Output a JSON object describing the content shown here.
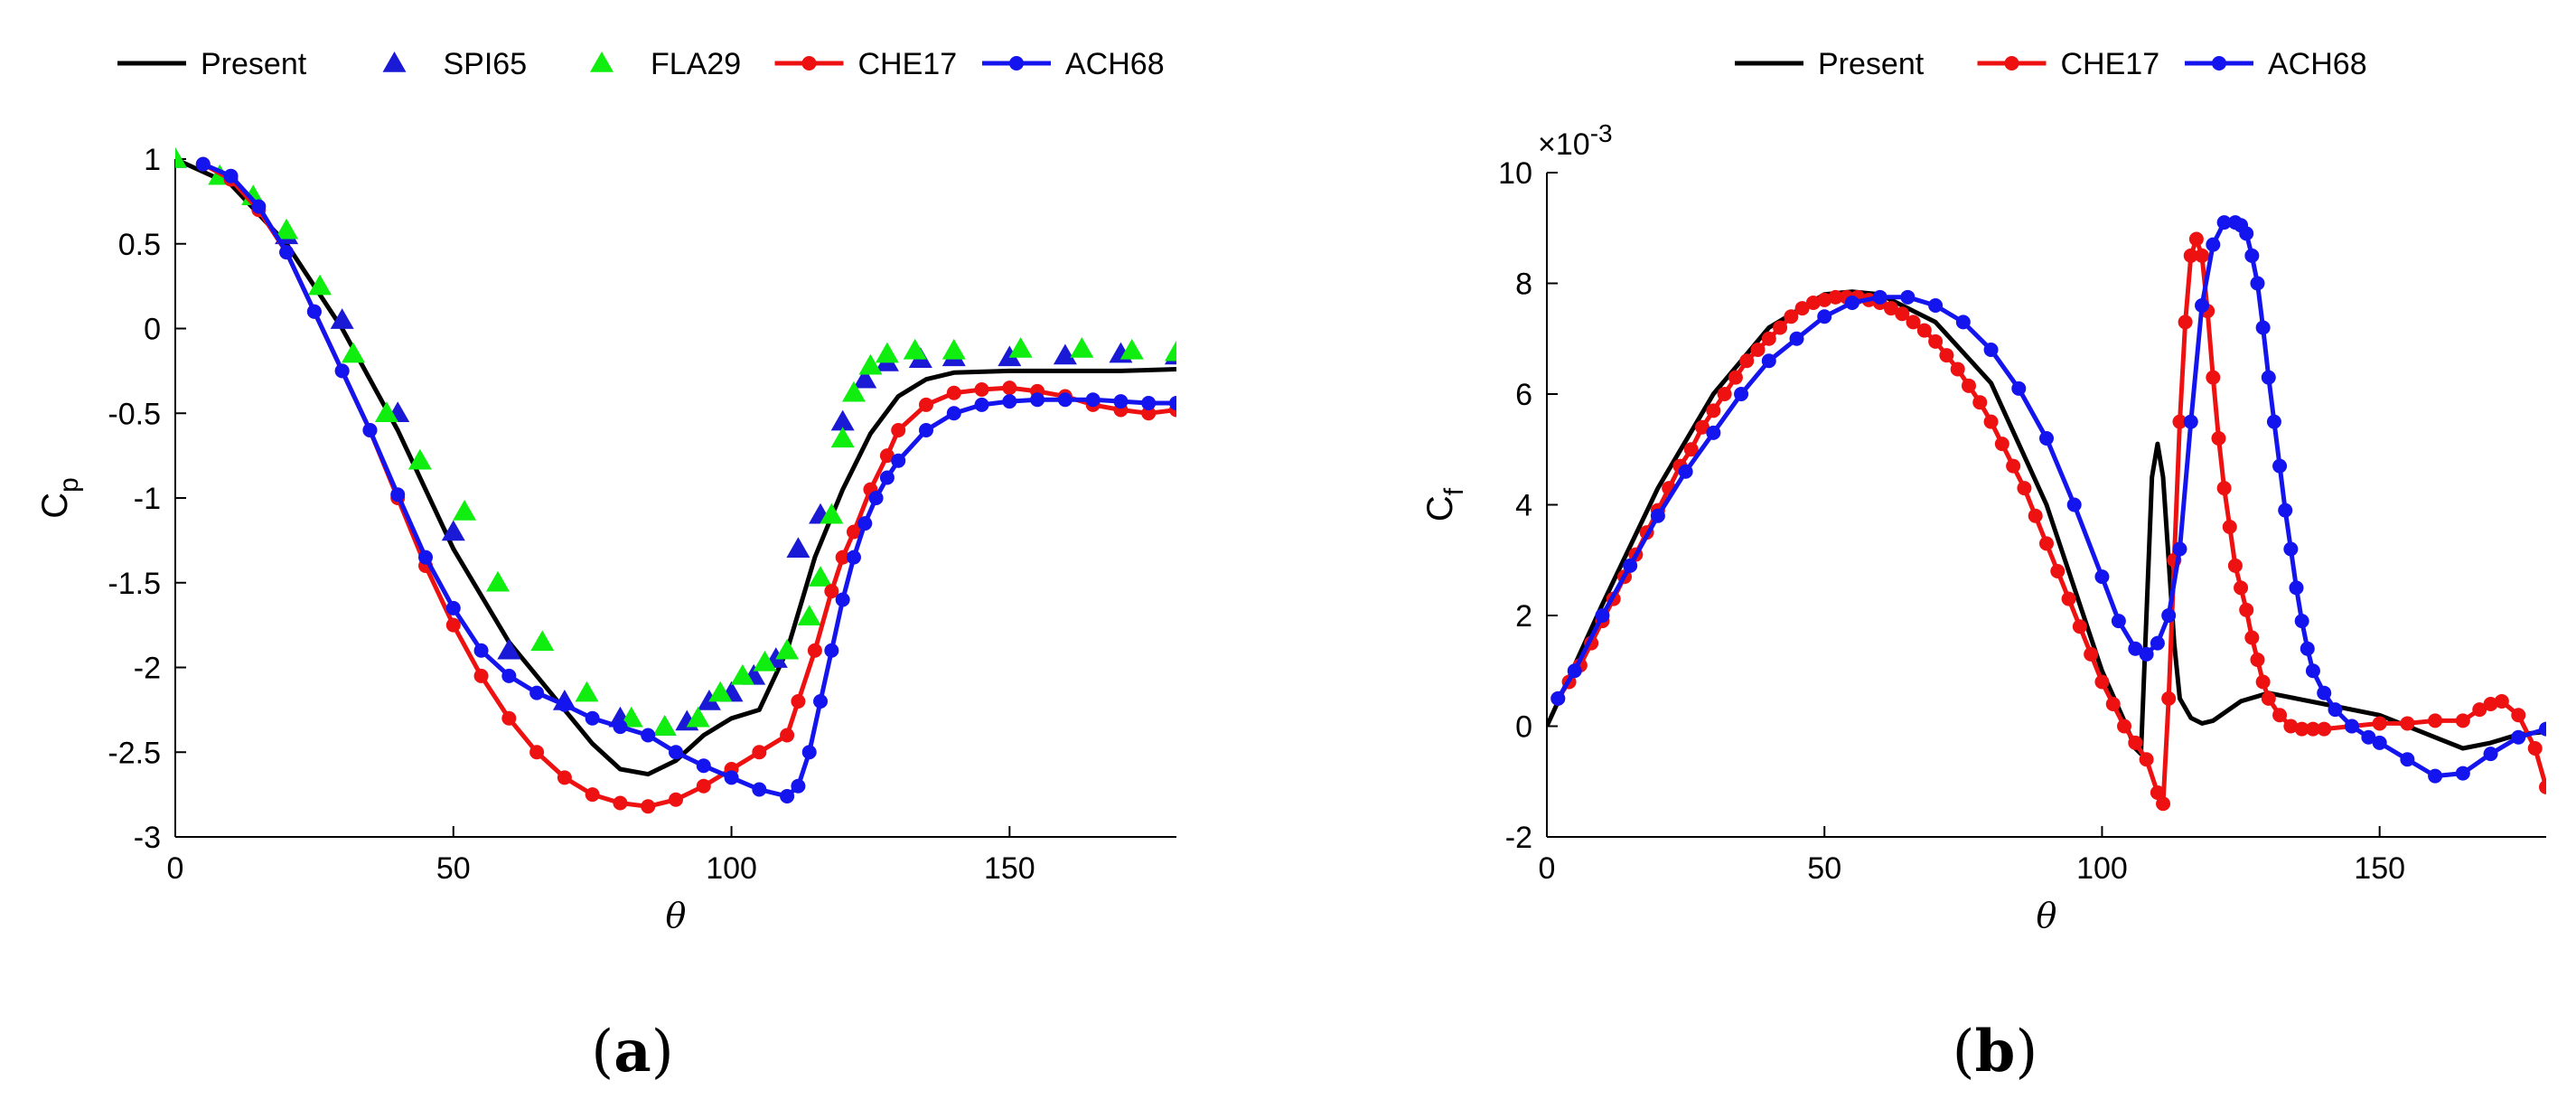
{
  "chart_data": [
    {
      "id": "a",
      "type": "line",
      "caption": "a",
      "xlabel": "θ",
      "ylabel_main": "C",
      "ylabel_sub": "p",
      "xlim": [
        0,
        180
      ],
      "ylim": [
        -3,
        1
      ],
      "xticks": [
        0,
        50,
        100,
        150
      ],
      "yticks": [
        1,
        0.5,
        0,
        -0.5,
        -1,
        -1.5,
        -2,
        -2.5,
        -3
      ],
      "ytick_labels": [
        "1",
        "0.5",
        "0",
        "-0.5",
        "-1",
        "-1.5",
        "-2",
        "-2.5",
        "-3"
      ],
      "legend": [
        "Present",
        "SPI65",
        "FLA29",
        "CHE17",
        "ACH68"
      ],
      "series": [
        {
          "name": "Present",
          "style": "line",
          "color": "#000000",
          "x": [
            0,
            10,
            20,
            30,
            40,
            50,
            60,
            70,
            75,
            80,
            85,
            90,
            95,
            100,
            105,
            110,
            115,
            120,
            125,
            130,
            135,
            140,
            150,
            160,
            170,
            180
          ],
          "y": [
            1.0,
            0.85,
            0.5,
            0.0,
            -0.6,
            -1.3,
            -1.85,
            -2.25,
            -2.45,
            -2.6,
            -2.63,
            -2.55,
            -2.4,
            -2.3,
            -2.25,
            -1.9,
            -1.35,
            -0.95,
            -0.62,
            -0.4,
            -0.3,
            -0.26,
            -0.25,
            -0.25,
            -0.25,
            -0.24
          ]
        },
        {
          "name": "SPI65",
          "style": "marker",
          "marker": "triangle",
          "color": "#1a1ad6",
          "x": [
            0,
            20,
            30,
            40,
            50,
            60,
            70,
            80,
            88,
            92,
            96,
            100,
            104,
            108,
            112,
            116,
            120,
            124,
            128,
            134,
            140,
            150,
            160,
            170,
            180
          ],
          "y": [
            1.0,
            0.55,
            0.05,
            -0.5,
            -1.2,
            -1.9,
            -2.2,
            -2.3,
            -2.35,
            -2.32,
            -2.2,
            -2.15,
            -2.05,
            -1.95,
            -1.3,
            -1.1,
            -0.55,
            -0.3,
            -0.2,
            -0.18,
            -0.17,
            -0.17,
            -0.16,
            -0.15,
            -0.16
          ]
        },
        {
          "name": "FLA29",
          "style": "marker",
          "marker": "triangle",
          "color": "#10ee10",
          "x": [
            0,
            8,
            14,
            20,
            26,
            32,
            38,
            44,
            52,
            58,
            66,
            74,
            82,
            88,
            94,
            98,
            102,
            106,
            110,
            114,
            116,
            118,
            120,
            122,
            125,
            128,
            133,
            140,
            152,
            163,
            172,
            180
          ],
          "y": [
            1.0,
            0.9,
            0.78,
            0.58,
            0.25,
            -0.15,
            -0.5,
            -0.78,
            -1.08,
            -1.5,
            -1.85,
            -2.15,
            -2.3,
            -2.35,
            -2.3,
            -2.15,
            -2.05,
            -1.97,
            -1.9,
            -1.7,
            -1.47,
            -1.1,
            -0.65,
            -0.38,
            -0.22,
            -0.15,
            -0.13,
            -0.13,
            -0.12,
            -0.12,
            -0.13,
            -0.14
          ]
        },
        {
          "name": "CHE17",
          "style": "line-marker",
          "marker": "circle",
          "color": "#ee1111",
          "x": [
            5,
            10,
            15,
            20,
            25,
            30,
            35,
            40,
            45,
            50,
            55,
            60,
            65,
            70,
            75,
            80,
            85,
            90,
            95,
            100,
            105,
            110,
            112,
            115,
            118,
            120,
            122,
            125,
            128,
            130,
            135,
            140,
            145,
            150,
            155,
            160,
            165,
            170,
            175,
            180
          ],
          "y": [
            0.97,
            0.88,
            0.7,
            0.45,
            0.1,
            -0.25,
            -0.6,
            -1.0,
            -1.4,
            -1.75,
            -2.05,
            -2.3,
            -2.5,
            -2.65,
            -2.75,
            -2.8,
            -2.82,
            -2.78,
            -2.7,
            -2.6,
            -2.5,
            -2.4,
            -2.2,
            -1.9,
            -1.55,
            -1.35,
            -1.2,
            -0.95,
            -0.75,
            -0.6,
            -0.45,
            -0.38,
            -0.36,
            -0.35,
            -0.37,
            -0.4,
            -0.45,
            -0.48,
            -0.5,
            -0.48
          ]
        },
        {
          "name": "ACH68",
          "style": "line-marker",
          "marker": "circle",
          "color": "#1414ee",
          "x": [
            5,
            10,
            15,
            20,
            25,
            30,
            35,
            40,
            45,
            50,
            55,
            60,
            65,
            70,
            75,
            80,
            85,
            90,
            95,
            100,
            105,
            110,
            112,
            114,
            116,
            118,
            120,
            122,
            124,
            126,
            128,
            130,
            135,
            140,
            145,
            150,
            155,
            160,
            165,
            170,
            175,
            180
          ],
          "y": [
            0.97,
            0.9,
            0.72,
            0.45,
            0.1,
            -0.25,
            -0.6,
            -0.98,
            -1.35,
            -1.65,
            -1.9,
            -2.05,
            -2.15,
            -2.22,
            -2.3,
            -2.35,
            -2.4,
            -2.5,
            -2.58,
            -2.65,
            -2.72,
            -2.76,
            -2.7,
            -2.5,
            -2.2,
            -1.9,
            -1.6,
            -1.35,
            -1.15,
            -1.0,
            -0.88,
            -0.78,
            -0.6,
            -0.5,
            -0.45,
            -0.43,
            -0.42,
            -0.42,
            -0.42,
            -0.43,
            -0.44,
            -0.44
          ]
        }
      ]
    },
    {
      "id": "b",
      "type": "line",
      "caption": "b",
      "xlabel": "θ",
      "ylabel_main": "C",
      "ylabel_sub": "f",
      "exponent_label": "×10",
      "exponent_power": "-3",
      "xlim": [
        0,
        180
      ],
      "ylim": [
        -2,
        10
      ],
      "xticks": [
        0,
        50,
        100,
        150
      ],
      "yticks": [
        10,
        8,
        6,
        4,
        2,
        0,
        -2
      ],
      "ytick_labels": [
        "10",
        "8",
        "6",
        "4",
        "2",
        "0",
        "-2"
      ],
      "legend": [
        "Present",
        "CHE17",
        "ACH68"
      ],
      "series": [
        {
          "name": "Present",
          "style": "line",
          "color": "#000000",
          "x": [
            0,
            10,
            20,
            30,
            40,
            50,
            55,
            60,
            70,
            80,
            90,
            95,
            100,
            104,
            106,
            107,
            108,
            109,
            110,
            111,
            112,
            113,
            114,
            116,
            118,
            120,
            125,
            130,
            135,
            140,
            150,
            160,
            165,
            170,
            175,
            180
          ],
          "y": [
            0,
            2.2,
            4.3,
            6.0,
            7.2,
            7.8,
            7.85,
            7.8,
            7.3,
            6.2,
            4.0,
            2.5,
            1.0,
            0.1,
            -0.4,
            -0.5,
            2.0,
            4.5,
            5.1,
            4.5,
            3.0,
            1.5,
            0.5,
            0.15,
            0.05,
            0.1,
            0.45,
            0.6,
            0.5,
            0.4,
            0.2,
            -0.2,
            -0.4,
            -0.3,
            -0.15,
            -0.1
          ]
        },
        {
          "name": "CHE17",
          "style": "line-marker",
          "marker": "circle",
          "color": "#ee1111",
          "x": [
            2,
            4,
            6,
            8,
            10,
            12,
            14,
            16,
            18,
            20,
            22,
            24,
            26,
            28,
            30,
            32,
            34,
            36,
            38,
            40,
            42,
            44,
            46,
            48,
            50,
            52,
            54,
            56,
            58,
            60,
            62,
            64,
            66,
            68,
            70,
            72,
            74,
            76,
            78,
            80,
            82,
            84,
            86,
            88,
            90,
            92,
            94,
            96,
            98,
            100,
            102,
            104,
            106,
            108,
            110,
            111,
            112,
            113,
            114,
            115,
            116,
            117,
            118,
            119,
            120,
            121,
            122,
            123,
            124,
            125,
            126,
            127,
            128,
            129,
            130,
            132,
            134,
            136,
            138,
            140,
            145,
            150,
            155,
            160,
            165,
            168,
            170,
            172,
            175,
            178,
            180
          ],
          "y": [
            0.5,
            0.8,
            1.1,
            1.5,
            1.9,
            2.3,
            2.7,
            3.1,
            3.5,
            3.9,
            4.3,
            4.7,
            5.0,
            5.4,
            5.7,
            6.0,
            6.3,
            6.6,
            6.8,
            7.0,
            7.2,
            7.4,
            7.55,
            7.65,
            7.7,
            7.75,
            7.75,
            7.75,
            7.7,
            7.65,
            7.55,
            7.45,
            7.3,
            7.15,
            6.95,
            6.7,
            6.45,
            6.15,
            5.85,
            5.5,
            5.1,
            4.7,
            4.3,
            3.8,
            3.3,
            2.8,
            2.3,
            1.8,
            1.3,
            0.8,
            0.4,
            0.0,
            -0.3,
            -0.6,
            -1.2,
            -1.4,
            0.5,
            3.0,
            5.5,
            7.3,
            8.5,
            8.8,
            8.5,
            7.5,
            6.3,
            5.2,
            4.3,
            3.6,
            2.9,
            2.5,
            2.1,
            1.6,
            1.2,
            0.8,
            0.5,
            0.2,
            0.0,
            -0.05,
            -0.05,
            -0.05,
            0.0,
            0.05,
            0.05,
            0.1,
            0.1,
            0.3,
            0.4,
            0.45,
            0.2,
            -0.4,
            -1.1
          ]
        },
        {
          "name": "ACH68",
          "style": "line-marker",
          "marker": "circle",
          "color": "#1414ee",
          "x": [
            2,
            5,
            10,
            15,
            20,
            25,
            30,
            35,
            40,
            45,
            50,
            55,
            60,
            65,
            70,
            75,
            80,
            85,
            90,
            95,
            100,
            103,
            106,
            108,
            110,
            112,
            114,
            116,
            118,
            120,
            122,
            124,
            125,
            126,
            127,
            128,
            129,
            130,
            131,
            132,
            133,
            134,
            135,
            136,
            137,
            138,
            140,
            142,
            145,
            148,
            150,
            155,
            160,
            165,
            170,
            175,
            180
          ],
          "y": [
            0.5,
            1.0,
            2.0,
            2.9,
            3.8,
            4.6,
            5.3,
            6.0,
            6.6,
            7.0,
            7.4,
            7.65,
            7.75,
            7.75,
            7.6,
            7.3,
            6.8,
            6.1,
            5.2,
            4.0,
            2.7,
            1.9,
            1.4,
            1.3,
            1.5,
            2.0,
            3.2,
            5.5,
            7.6,
            8.7,
            9.1,
            9.1,
            9.05,
            8.9,
            8.5,
            8.0,
            7.2,
            6.3,
            5.5,
            4.7,
            3.9,
            3.2,
            2.5,
            1.9,
            1.4,
            1.0,
            0.6,
            0.3,
            0.0,
            -0.2,
            -0.3,
            -0.6,
            -0.9,
            -0.85,
            -0.5,
            -0.2,
            -0.05
          ]
        }
      ]
    }
  ]
}
